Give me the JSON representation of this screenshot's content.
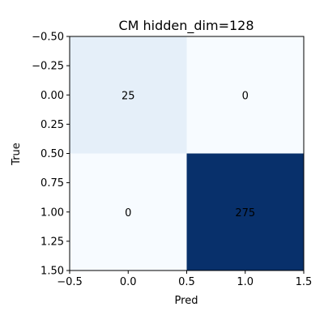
{
  "chart_data": {
    "type": "heatmap",
    "title": "CM hidden_dim=128",
    "xlabel": "Pred",
    "ylabel": "True",
    "x_categories": [
      0,
      1
    ],
    "y_categories": [
      0,
      1
    ],
    "values": [
      [
        25,
        0
      ],
      [
        0,
        275
      ]
    ],
    "xlim": [
      -0.5,
      1.5
    ],
    "ylim": [
      1.5,
      -0.5
    ],
    "x_ticks": [
      "−0.5",
      "0.0",
      "0.5",
      "1.0",
      "1.5"
    ],
    "y_ticks": [
      "−0.50",
      "−0.25",
      "0.00",
      "0.25",
      "0.50",
      "0.75",
      "1.00",
      "1.25",
      "1.50"
    ],
    "colormap": "Blues",
    "color_low": "#f7fbff",
    "color_high": "#08306b",
    "grid": false,
    "legend": false
  }
}
